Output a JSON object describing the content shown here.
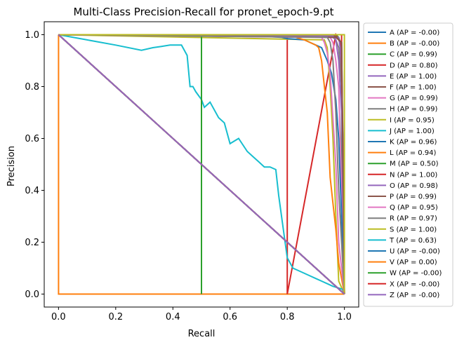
{
  "chart_data": {
    "type": "line",
    "title": "Multi-Class Precision-Recall for pronet_epoch-9.pt",
    "xlabel": "Recall",
    "ylabel": "Precision",
    "xlim": [
      -0.05,
      1.05
    ],
    "ylim": [
      -0.05,
      1.05
    ],
    "xticks": [
      "0.0",
      "0.2",
      "0.4",
      "0.6",
      "0.8",
      "1.0"
    ],
    "yticks": [
      "0.0",
      "0.2",
      "0.4",
      "0.6",
      "0.8",
      "1.0"
    ],
    "grid": false,
    "legend_position": "outside right",
    "series": [
      {
        "name": "A (AP = -0.00)",
        "color": "#1f77b4",
        "x": [
          0,
          1
        ],
        "y": [
          1,
          0
        ]
      },
      {
        "name": "B (AP = -0.00)",
        "color": "#ff7f0e",
        "x": [
          0,
          0,
          1,
          1
        ],
        "y": [
          1,
          0,
          0,
          0.0
        ]
      },
      {
        "name": "C (AP = 0.99)",
        "color": "#2ca02c",
        "x": [
          0,
          0.97,
          0.98,
          0.99,
          0.99,
          1.0
        ],
        "y": [
          1,
          0.999,
          0.99,
          0.95,
          0.3,
          0
        ]
      },
      {
        "name": "D (AP = 0.80)",
        "color": "#d62728",
        "x": [
          0,
          0.8,
          0.8,
          0.97,
          0.985,
          0.99,
          1.0
        ],
        "y": [
          1,
          1,
          0,
          1.0,
          0.97,
          0.9,
          0
        ]
      },
      {
        "name": "E (AP = 1.00)",
        "color": "#9467bd",
        "x": [
          0,
          0.98,
          0.985,
          0.99,
          0.995,
          1.0
        ],
        "y": [
          1,
          0.99,
          0.95,
          0.85,
          0.6,
          0
        ]
      },
      {
        "name": "F (AP = 1.00)",
        "color": "#8c564b",
        "x": [
          0,
          0.97,
          0.98,
          0.99,
          1.0
        ],
        "y": [
          1,
          0.995,
          0.98,
          0.97,
          0
        ]
      },
      {
        "name": "G (AP = 0.99)",
        "color": "#e377c2",
        "x": [
          0,
          0.95,
          0.96,
          0.97,
          0.98,
          1.0
        ],
        "y": [
          1,
          0.99,
          0.97,
          0.9,
          0.8,
          0
        ]
      },
      {
        "name": "H (AP = 0.99)",
        "color": "#7f7f7f",
        "x": [
          0,
          0.96,
          0.97,
          0.98,
          0.99,
          1.0
        ],
        "y": [
          1,
          0.99,
          0.98,
          0.95,
          0.8,
          0
        ]
      },
      {
        "name": "I (AP = 0.95)",
        "color": "#bcbd22",
        "x": [
          0,
          0.93,
          0.94,
          0.95,
          0.96,
          0.97,
          0.98,
          1.0
        ],
        "y": [
          1,
          0.98,
          0.95,
          0.8,
          0.6,
          0.3,
          0.05,
          0
        ]
      },
      {
        "name": "J (AP = 1.00)",
        "color": "#17becf",
        "x": [
          0,
          0.1,
          0.2,
          0.29,
          0.33,
          0.36,
          0.39,
          0.43,
          0.45,
          0.46,
          0.47,
          0.48,
          0.5,
          0.51,
          0.53,
          0.56,
          0.58,
          0.6,
          0.63,
          0.66,
          0.68,
          0.7,
          0.72,
          0.74,
          0.76,
          0.77,
          0.79,
          0.8,
          0.82,
          0.86,
          0.88,
          0.9,
          0.92,
          0.94,
          0.96,
          0.99,
          1.0
        ],
        "y": [
          1,
          0.98,
          0.96,
          0.94,
          0.95,
          0.955,
          0.96,
          0.96,
          0.92,
          0.8,
          0.8,
          0.78,
          0.75,
          0.72,
          0.74,
          0.68,
          0.66,
          0.58,
          0.6,
          0.55,
          0.53,
          0.51,
          0.49,
          0.49,
          0.48,
          0.38,
          0.22,
          0.14,
          0.1,
          0.08,
          0.07,
          0.06,
          0.05,
          0.04,
          0.03,
          0.02,
          0.01
        ]
      },
      {
        "name": "K (AP = 0.96)",
        "color": "#1f77b4",
        "x": [
          0,
          0.7,
          0.78,
          0.8,
          0.86,
          0.88,
          0.9,
          0.92,
          0.94,
          0.955,
          0.97,
          0.98,
          0.99,
          1.0
        ],
        "y": [
          1,
          0.995,
          0.99,
          0.985,
          0.98,
          0.97,
          0.96,
          0.95,
          0.9,
          0.85,
          0.75,
          0.6,
          0.3,
          0
        ]
      },
      {
        "name": "L (AP = 0.94)",
        "color": "#ff7f0e",
        "x": [
          0,
          0.8,
          0.83,
          0.86,
          0.88,
          0.9,
          0.91,
          0.92,
          0.93,
          0.94,
          0.95,
          0.96,
          0.97,
          0.98,
          1.0
        ],
        "y": [
          1,
          1.0,
          0.99,
          0.98,
          0.97,
          0.96,
          0.95,
          0.9,
          0.8,
          0.7,
          0.45,
          0.35,
          0.25,
          0.12,
          0
        ]
      },
      {
        "name": "M (AP = 0.50)",
        "color": "#2ca02c",
        "x": [
          0,
          0.5,
          0.5
        ],
        "y": [
          1,
          1,
          0
        ]
      },
      {
        "name": "N (AP = 1.00)",
        "color": "#d62728",
        "x": [
          0,
          0.99,
          0.99,
          1.0
        ],
        "y": [
          1,
          1,
          0.9,
          0
        ]
      },
      {
        "name": "O (AP = 0.98)",
        "color": "#9467bd",
        "x": [
          0,
          0.96,
          0.97,
          0.98,
          0.99,
          1.0
        ],
        "y": [
          1,
          0.995,
          0.98,
          0.9,
          0.7,
          0
        ]
      },
      {
        "name": "P (AP = 0.99)",
        "color": "#8c564b",
        "x": [
          0,
          0.97,
          0.98,
          0.99,
          1.0
        ],
        "y": [
          1,
          0.99,
          0.98,
          0.97,
          0
        ]
      },
      {
        "name": "Q (AP = 0.95)",
        "color": "#e377c2",
        "x": [
          0,
          0.92,
          0.93,
          0.94,
          0.95,
          0.97,
          0.98,
          1.0
        ],
        "y": [
          1,
          0.99,
          0.97,
          0.93,
          0.85,
          0.5,
          0.2,
          0
        ]
      },
      {
        "name": "R (AP = 0.97)",
        "color": "#7f7f7f",
        "x": [
          0,
          0.94,
          0.95,
          0.96,
          0.97,
          0.98,
          1.0
        ],
        "y": [
          1,
          0.99,
          0.97,
          0.9,
          0.7,
          0.4,
          0
        ]
      },
      {
        "name": "S (AP = 1.00)",
        "color": "#bcbd22",
        "x": [
          0,
          1.0,
          1.0
        ],
        "y": [
          1,
          1,
          0
        ]
      },
      {
        "name": "T (AP = 0.63)",
        "color": "#17becf",
        "x": [
          0,
          1
        ],
        "y": [
          1,
          0
        ]
      },
      {
        "name": "U (AP = -0.00)",
        "color": "#1f77b4",
        "x": [
          0,
          1
        ],
        "y": [
          1,
          0
        ]
      },
      {
        "name": "V (AP = 0.00)",
        "color": "#ff7f0e",
        "x": [
          0,
          1
        ],
        "y": [
          1,
          0
        ]
      },
      {
        "name": "W (AP = -0.00)",
        "color": "#2ca02c",
        "x": [
          0,
          1
        ],
        "y": [
          1,
          0
        ]
      },
      {
        "name": "X (AP = -0.00)",
        "color": "#d62728",
        "x": [
          0,
          1
        ],
        "y": [
          1,
          0
        ]
      },
      {
        "name": "Z (AP = -0.00)",
        "color": "#9467bd",
        "x": [
          0,
          1
        ],
        "y": [
          1,
          0
        ]
      }
    ]
  }
}
